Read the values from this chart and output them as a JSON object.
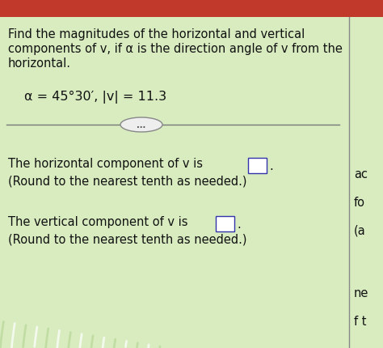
{
  "bg_color_light": "#cde8b0",
  "bg_color_main": "#d8ecc0",
  "red_top": "#c0392b",
  "line_color": "#666666",
  "text_color": "#111111",
  "title_line1": "Find the magnitudes of the horizontal and vertical",
  "title_line2": "components of v, if α is the direction angle of v from the",
  "title_line3": "horizontal.",
  "eq_text": "α = 45°30′, |v| = 11.3",
  "h_comp_text": "The horizontal component of v is",
  "h_comp_text2": "(Round to the nearest tenth as needed.)",
  "v_comp_text": "The vertical component of v is",
  "v_comp_text2": "(Round to the nearest tenth as needed.)",
  "right1": "ac",
  "right2": "fo",
  "right3": "(a",
  "right4": "ne",
  "right5": "f t",
  "font_size_title": 10.5,
  "font_size_eq": 11.5,
  "font_size_body": 10.5,
  "font_size_right": 10.5,
  "wave_color_white": "#ffffff",
  "wave_color_green": "#b8d898"
}
